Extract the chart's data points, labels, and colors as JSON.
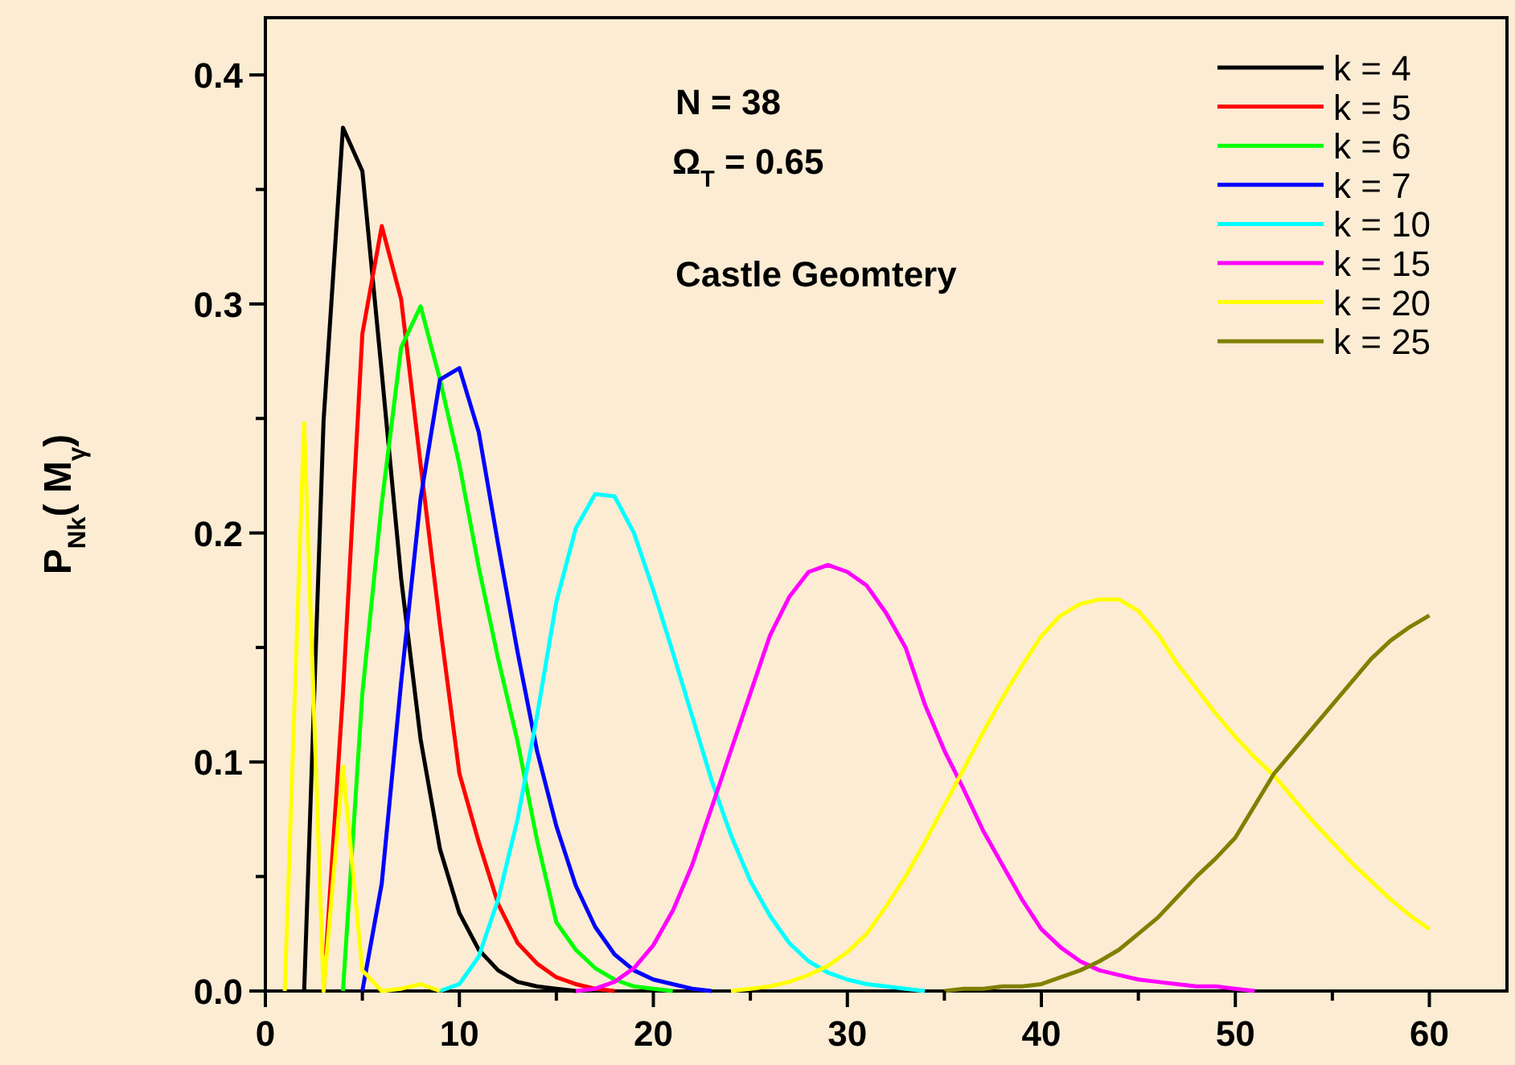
{
  "chart_data": {
    "type": "line",
    "ylabel": "P$_{Nk}$( M$_{γ}$)",
    "annotations": [
      "N = 38",
      "Ω$_{T}$ = 0.65",
      "Castle Geomtery"
    ],
    "xlim": [
      0,
      64
    ],
    "ylim": [
      0,
      0.425
    ],
    "xticks": [
      0,
      {
        "value": 5,
        "label": null
      },
      10,
      {
        "value": 15,
        "label": null
      },
      20,
      {
        "value": 25,
        "label": null
      },
      30,
      {
        "value": 35,
        "label": null
      },
      40,
      {
        "value": 45,
        "label": null
      },
      50,
      {
        "value": 55,
        "label": null
      },
      60
    ],
    "yticks": [
      {
        "value": 0,
        "label": "0.0"
      },
      {
        "value": 0.05,
        "label": null
      },
      0.1,
      {
        "value": 0.15,
        "label": null
      },
      0.2,
      {
        "value": 0.25,
        "label": null
      },
      0.3,
      {
        "value": 0.35,
        "label": null
      },
      0.4
    ],
    "grid": false,
    "legend": "top right",
    "marker": "none",
    "line_style": "solid",
    "series": [
      {
        "name": "k = 4",
        "color": "#000000",
        "x": [
          2,
          3,
          4,
          5,
          6,
          7,
          8,
          9,
          10,
          11,
          12,
          13,
          14,
          15,
          16
        ],
        "values": [
          0,
          0.249,
          0.377,
          0.358,
          0.27,
          0.18,
          0.11,
          0.062,
          0.034,
          0.018,
          0.009,
          0.004,
          0.002,
          0.001,
          0
        ]
      },
      {
        "name": "k = 5",
        "color": "#ff0000",
        "x": [
          3,
          4,
          5,
          6,
          7,
          8,
          9,
          10,
          11,
          12,
          13,
          14,
          15,
          16,
          17,
          18
        ],
        "values": [
          0,
          0.13,
          0.287,
          0.334,
          0.302,
          0.23,
          0.16,
          0.095,
          0.065,
          0.038,
          0.021,
          0.012,
          0.006,
          0.003,
          0.001,
          0
        ]
      },
      {
        "name": "k = 6",
        "color": "#00ff00",
        "x": [
          4,
          5,
          6,
          7,
          8,
          9,
          10,
          11,
          12,
          13,
          14,
          15,
          16,
          17,
          18,
          19,
          20,
          21
        ],
        "values": [
          0,
          0.13,
          0.213,
          0.281,
          0.299,
          0.267,
          0.23,
          0.185,
          0.145,
          0.109,
          0.066,
          0.03,
          0.018,
          0.01,
          0.005,
          0.002,
          0.001,
          0
        ]
      },
      {
        "name": "k = 7",
        "color": "#0000ff",
        "x": [
          5,
          6,
          7,
          8,
          9,
          10,
          11,
          12,
          13,
          14,
          15,
          16,
          17,
          18,
          19,
          20,
          21,
          22,
          23
        ],
        "values": [
          0,
          0.047,
          0.135,
          0.215,
          0.267,
          0.272,
          0.244,
          0.195,
          0.148,
          0.105,
          0.072,
          0.046,
          0.028,
          0.016,
          0.009,
          0.005,
          0.003,
          0.001,
          0
        ]
      },
      {
        "name": "k = 10",
        "color": "#00ffff",
        "x": [
          9,
          10,
          11,
          12,
          13,
          14,
          15,
          16,
          17,
          18,
          19,
          20,
          21,
          22,
          23,
          24,
          25,
          26,
          27,
          28,
          29,
          30,
          31,
          32,
          33,
          34
        ],
        "values": [
          0,
          0.003,
          0.015,
          0.04,
          0.075,
          0.12,
          0.17,
          0.202,
          0.217,
          0.216,
          0.2,
          0.175,
          0.148,
          0.12,
          0.092,
          0.068,
          0.048,
          0.033,
          0.021,
          0.013,
          0.008,
          0.005,
          0.003,
          0.002,
          0.001,
          0
        ]
      },
      {
        "name": "k = 15",
        "color": "#ff00ff",
        "x": [
          16,
          17,
          18,
          19,
          20,
          21,
          22,
          23,
          24,
          25,
          26,
          27,
          28,
          29,
          30,
          31,
          32,
          33,
          34,
          35,
          36,
          37,
          38,
          39,
          40,
          41,
          42,
          43,
          44,
          45,
          46,
          47,
          48,
          49,
          50,
          51
        ],
        "values": [
          0,
          0.001,
          0.004,
          0.01,
          0.02,
          0.035,
          0.055,
          0.08,
          0.105,
          0.13,
          0.155,
          0.172,
          0.183,
          0.186,
          0.183,
          0.177,
          0.165,
          0.15,
          0.125,
          0.105,
          0.088,
          0.07,
          0.055,
          0.04,
          0.027,
          0.019,
          0.013,
          0.009,
          0.007,
          0.005,
          0.004,
          0.003,
          0.002,
          0.002,
          0.001,
          0
        ]
      },
      {
        "name": "k = 20",
        "color": "#ffff00",
        "x": [
          1,
          2,
          3,
          4,
          5,
          6,
          7,
          8,
          9,
          null,
          24,
          25,
          26,
          27,
          28,
          29,
          30,
          31,
          32,
          33,
          34,
          35,
          36,
          37,
          38,
          39,
          40,
          41,
          42,
          43,
          44,
          45,
          46,
          47,
          48,
          49,
          50,
          51,
          52,
          53,
          54,
          55,
          56,
          57,
          58,
          59,
          60
        ],
        "values": [
          0,
          0.248,
          0,
          0.098,
          0.009,
          0,
          0.001,
          0.003,
          0,
          null,
          0,
          0.001,
          0.002,
          0.004,
          0.007,
          0.011,
          0.017,
          0.025,
          0.037,
          0.05,
          0.065,
          0.081,
          0.097,
          0.113,
          0.128,
          0.142,
          0.155,
          0.164,
          0.169,
          0.171,
          0.171,
          0.166,
          0.156,
          0.143,
          0.132,
          0.121,
          0.111,
          0.102,
          0.094,
          0.084,
          0.074,
          0.065,
          0.056,
          0.048,
          0.04,
          0.033,
          0.027
        ]
      },
      {
        "name": "k = 25",
        "color": "#808000",
        "x": [
          35,
          36,
          37,
          38,
          39,
          40,
          41,
          42,
          43,
          44,
          45,
          46,
          47,
          48,
          49,
          50,
          51,
          52,
          53,
          54,
          55,
          56,
          57,
          58,
          59,
          60
        ],
        "values": [
          0,
          0.001,
          0.001,
          0.002,
          0.002,
          0.003,
          0.006,
          0.009,
          0.013,
          0.018,
          0.025,
          0.032,
          0.041,
          0.05,
          0.058,
          0.067,
          0.081,
          0.095,
          0.105,
          0.115,
          0.125,
          0.135,
          0.145,
          0.153,
          0.159,
          0.164
        ]
      }
    ]
  }
}
